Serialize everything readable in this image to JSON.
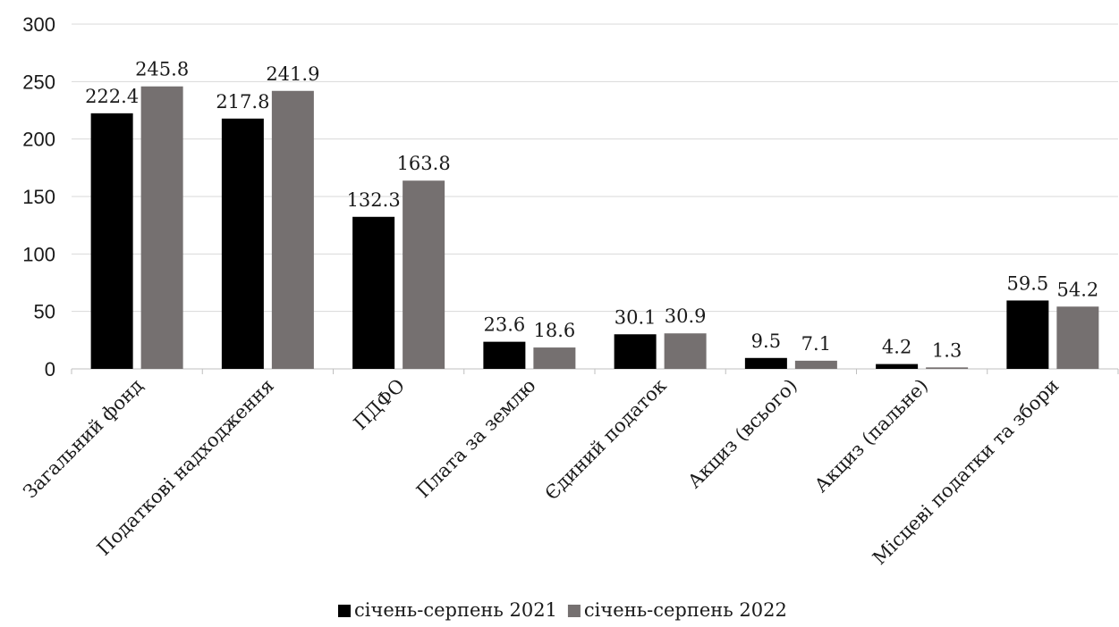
{
  "chart_data": {
    "type": "bar",
    "title": "",
    "xlabel": "",
    "ylabel": "",
    "ylim": [
      0,
      300
    ],
    "yticks": [
      0,
      50,
      100,
      150,
      200,
      250,
      300
    ],
    "ytick_labels": [
      "0",
      "50",
      "100",
      "150",
      "200",
      "250",
      "300"
    ],
    "grid": true,
    "legend_position": "bottom",
    "categories": [
      "Загальний фонд",
      "Податкові надходження",
      "ПДФО",
      "Плата за землю",
      "Єдиний податок",
      "Акциз (всього)",
      "Акциз (пальне)",
      "Місцеві податки та збори"
    ],
    "series": [
      {
        "name": "січень-серпень 2021",
        "color": "#000000",
        "values": [
          222.4,
          217.8,
          132.3,
          23.6,
          30.1,
          9.5,
          4.2,
          59.5
        ],
        "labels": [
          "222.4",
          "217.8",
          "132.3",
          "23.6",
          "30.1",
          "9.5",
          "4.2",
          "59.5"
        ]
      },
      {
        "name": "січень-серпень 2022",
        "color": "#757070",
        "values": [
          245.8,
          241.9,
          163.8,
          18.6,
          30.9,
          7.1,
          1.3,
          54.2
        ],
        "labels": [
          "245.8",
          "241.9",
          "163.8",
          "18.6",
          "30.9",
          "7.1",
          "1.3",
          "54.2"
        ]
      }
    ]
  }
}
